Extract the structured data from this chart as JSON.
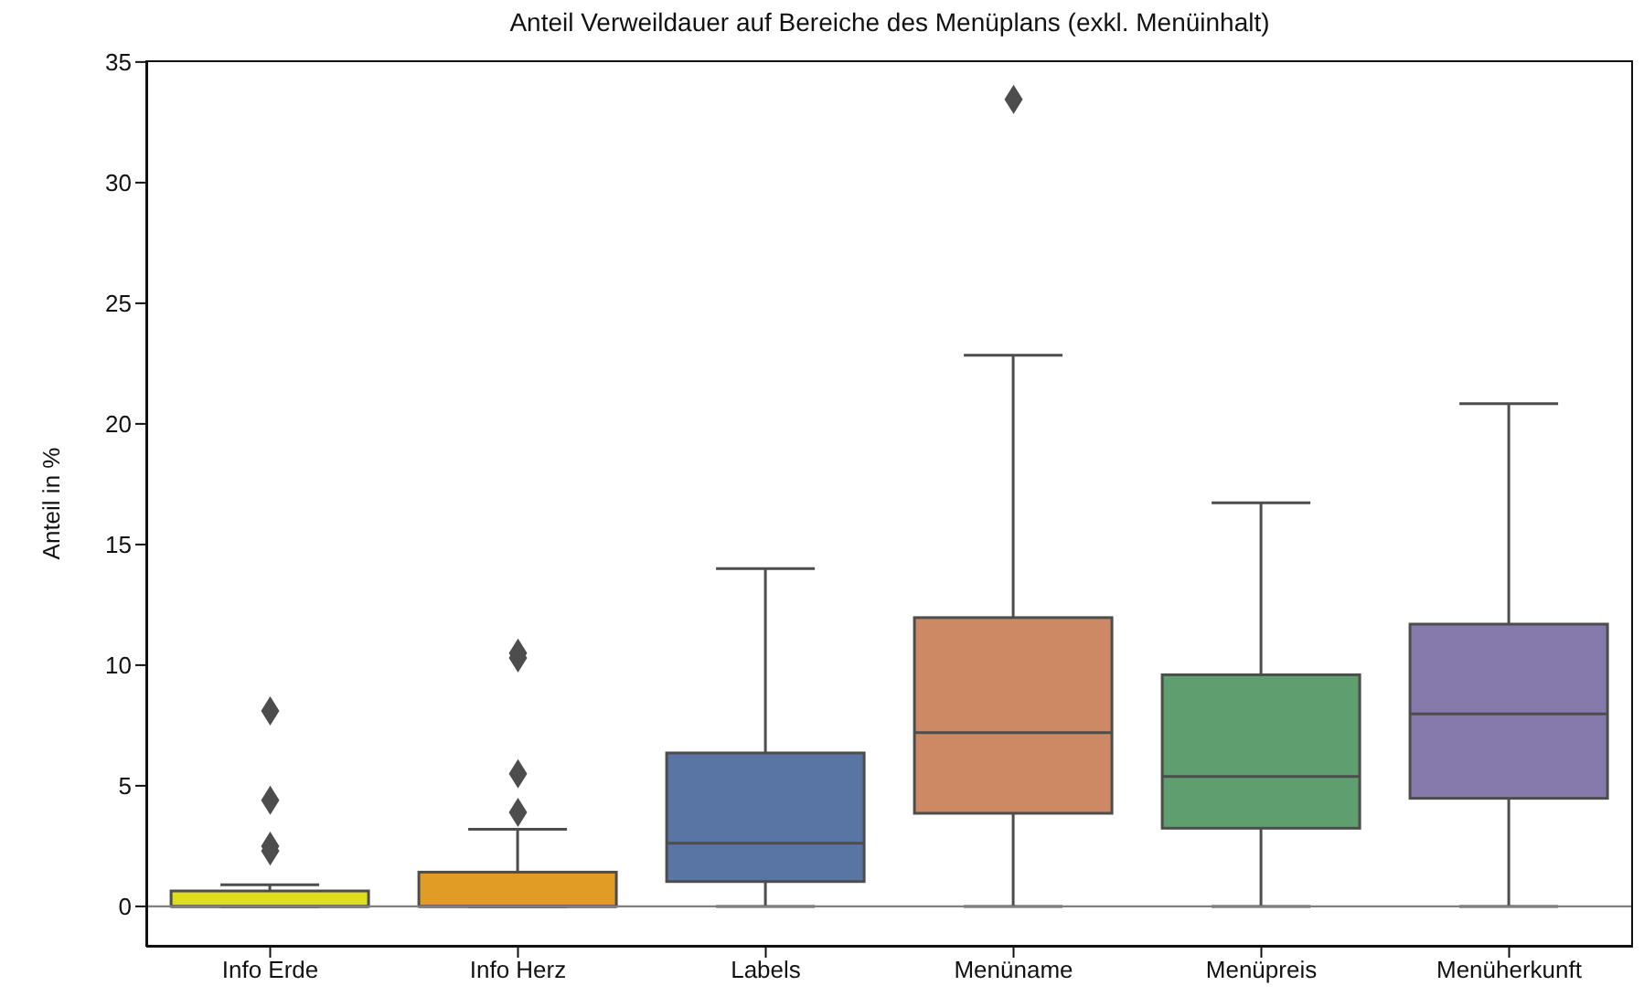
{
  "chart_data": {
    "type": "box",
    "title": "Anteil Verweildauer auf Bereiche des Menüplans (exkl. Menüinhalt)",
    "ylabel": "Anteil in %",
    "categories": [
      "Info Erde",
      "Info Herz",
      "Labels",
      "Menüname",
      "Menüpreis",
      "Menüherkunft"
    ],
    "colors": [
      "#dede1f",
      "#e09c24",
      "#5975a4",
      "#cc8963",
      "#5f9e6e",
      "#857aab"
    ],
    "boxes": [
      {
        "low": 0,
        "q1": 0,
        "median": 0,
        "q3": 0.64,
        "high": 0.9,
        "outliers": [
          8.1,
          4.4,
          2.5,
          2.3
        ]
      },
      {
        "low": 0,
        "q1": 0,
        "median": 0,
        "q3": 1.42,
        "high": 3.2,
        "outliers": [
          10.5,
          10.3,
          5.5,
          3.9
        ]
      },
      {
        "low": 0,
        "q1": 1.03,
        "median": 2.62,
        "q3": 6.36,
        "high": 14.0
      },
      {
        "low": 0,
        "q1": 3.86,
        "median": 7.2,
        "q3": 11.97,
        "high": 22.85,
        "outliers": [
          33.45
        ]
      },
      {
        "low": 0,
        "q1": 3.24,
        "median": 5.38,
        "q3": 9.6,
        "high": 16.73
      },
      {
        "low": 0,
        "q1": 4.48,
        "median": 7.98,
        "q3": 11.7,
        "high": 20.84
      }
    ],
    "marker": "diamond",
    "ylim": [
      -1.67,
      35.07
    ],
    "yticks": [
      0,
      5,
      10,
      15,
      20,
      25,
      30,
      35
    ],
    "ref_lines": [
      {
        "axis": "y",
        "value": 0,
        "color": "#808080"
      }
    ]
  }
}
